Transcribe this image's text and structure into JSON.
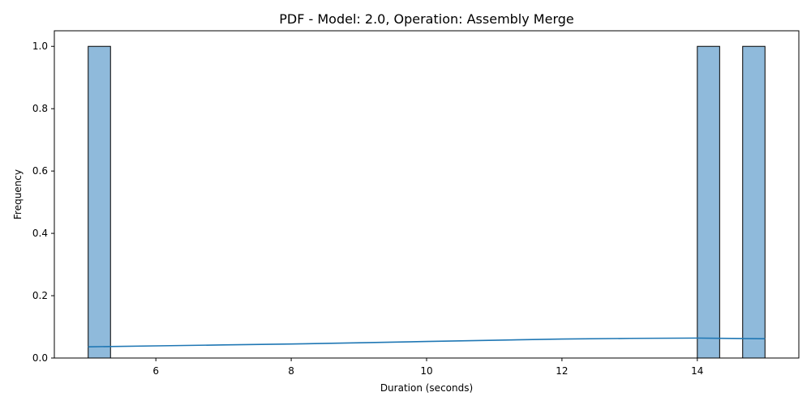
{
  "chart_data": {
    "type": "bar",
    "title": "PDF - Model: 2.0, Operation: Assembly Merge",
    "xlabel": "Duration (seconds)",
    "ylabel": "Frequency",
    "xlim": [
      4.5,
      15.5
    ],
    "ylim": [
      0,
      1.05
    ],
    "x_ticks": [
      6,
      8,
      10,
      12,
      14
    ],
    "y_ticks": [
      0.0,
      0.2,
      0.4,
      0.6,
      0.8,
      1.0
    ],
    "x_tick_labels": [
      "6",
      "8",
      "10",
      "12",
      "14"
    ],
    "y_tick_labels": [
      "0.0",
      "0.2",
      "0.4",
      "0.6",
      "0.8",
      "1.0"
    ],
    "bars": [
      {
        "x0": 5.0,
        "x1": 5.33,
        "value": 1
      },
      {
        "x0": 14.0,
        "x1": 14.33,
        "value": 1
      },
      {
        "x0": 14.67,
        "x1": 15.0,
        "value": 1
      }
    ],
    "kde": {
      "x": [
        5.0,
        6.0,
        7.0,
        8.0,
        9.0,
        10.0,
        11.0,
        12.0,
        13.0,
        14.0,
        15.0
      ],
      "y": [
        0.036,
        0.039,
        0.042,
        0.045,
        0.049,
        0.053,
        0.057,
        0.061,
        0.063,
        0.064,
        0.062
      ]
    },
    "colors": {
      "bar_fill": "#8fbadb",
      "bar_edge": "#000000",
      "kde_line": "#1f77b4"
    },
    "grid": false,
    "legend": "none"
  }
}
